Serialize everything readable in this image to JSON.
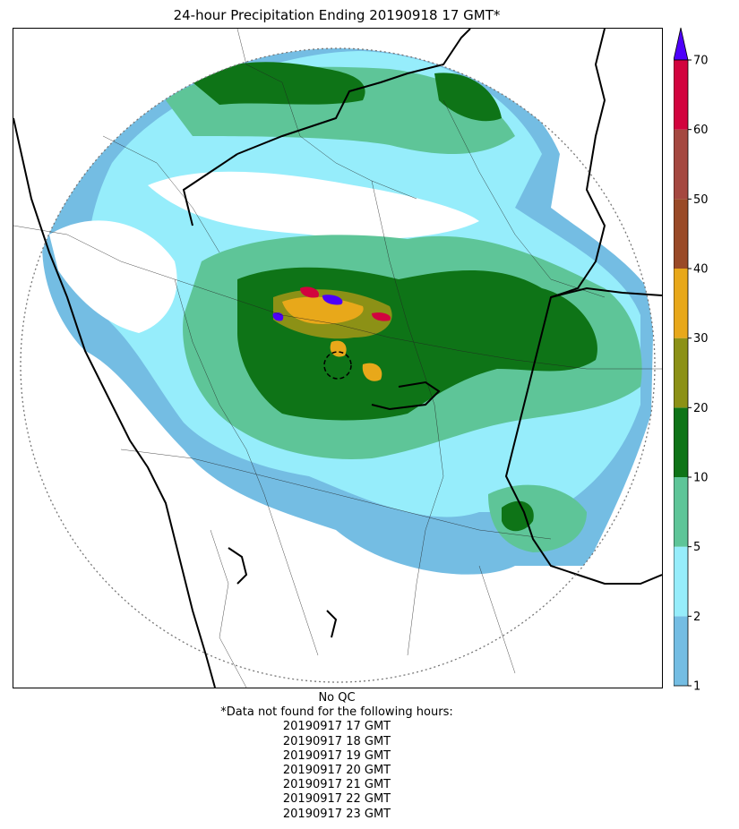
{
  "title": "24-hour Precipitation Ending 20190918 17 GMT*",
  "colorbar": {
    "tick_labels": [
      "1",
      "2",
      "5",
      "10",
      "20",
      "30",
      "40",
      "50",
      "60",
      "70"
    ],
    "colors": [
      "#74bde3",
      "#96edfb",
      "#5ec598",
      "#0e7417",
      "#8c9116",
      "#e8a81a",
      "#9a4a27",
      "#a54840",
      "#d2033e"
    ],
    "over_color": "#4e00fa"
  },
  "footer": {
    "qc_label": "No QC",
    "missing_note": "*Data not found for the following hours:",
    "missing_hours": [
      "20190917 17 GMT",
      "20190917 18 GMT",
      "20190917 19 GMT",
      "20190917 20 GMT",
      "20190917 21 GMT",
      "20190917 22 GMT",
      "20190917 23 GMT"
    ]
  }
}
